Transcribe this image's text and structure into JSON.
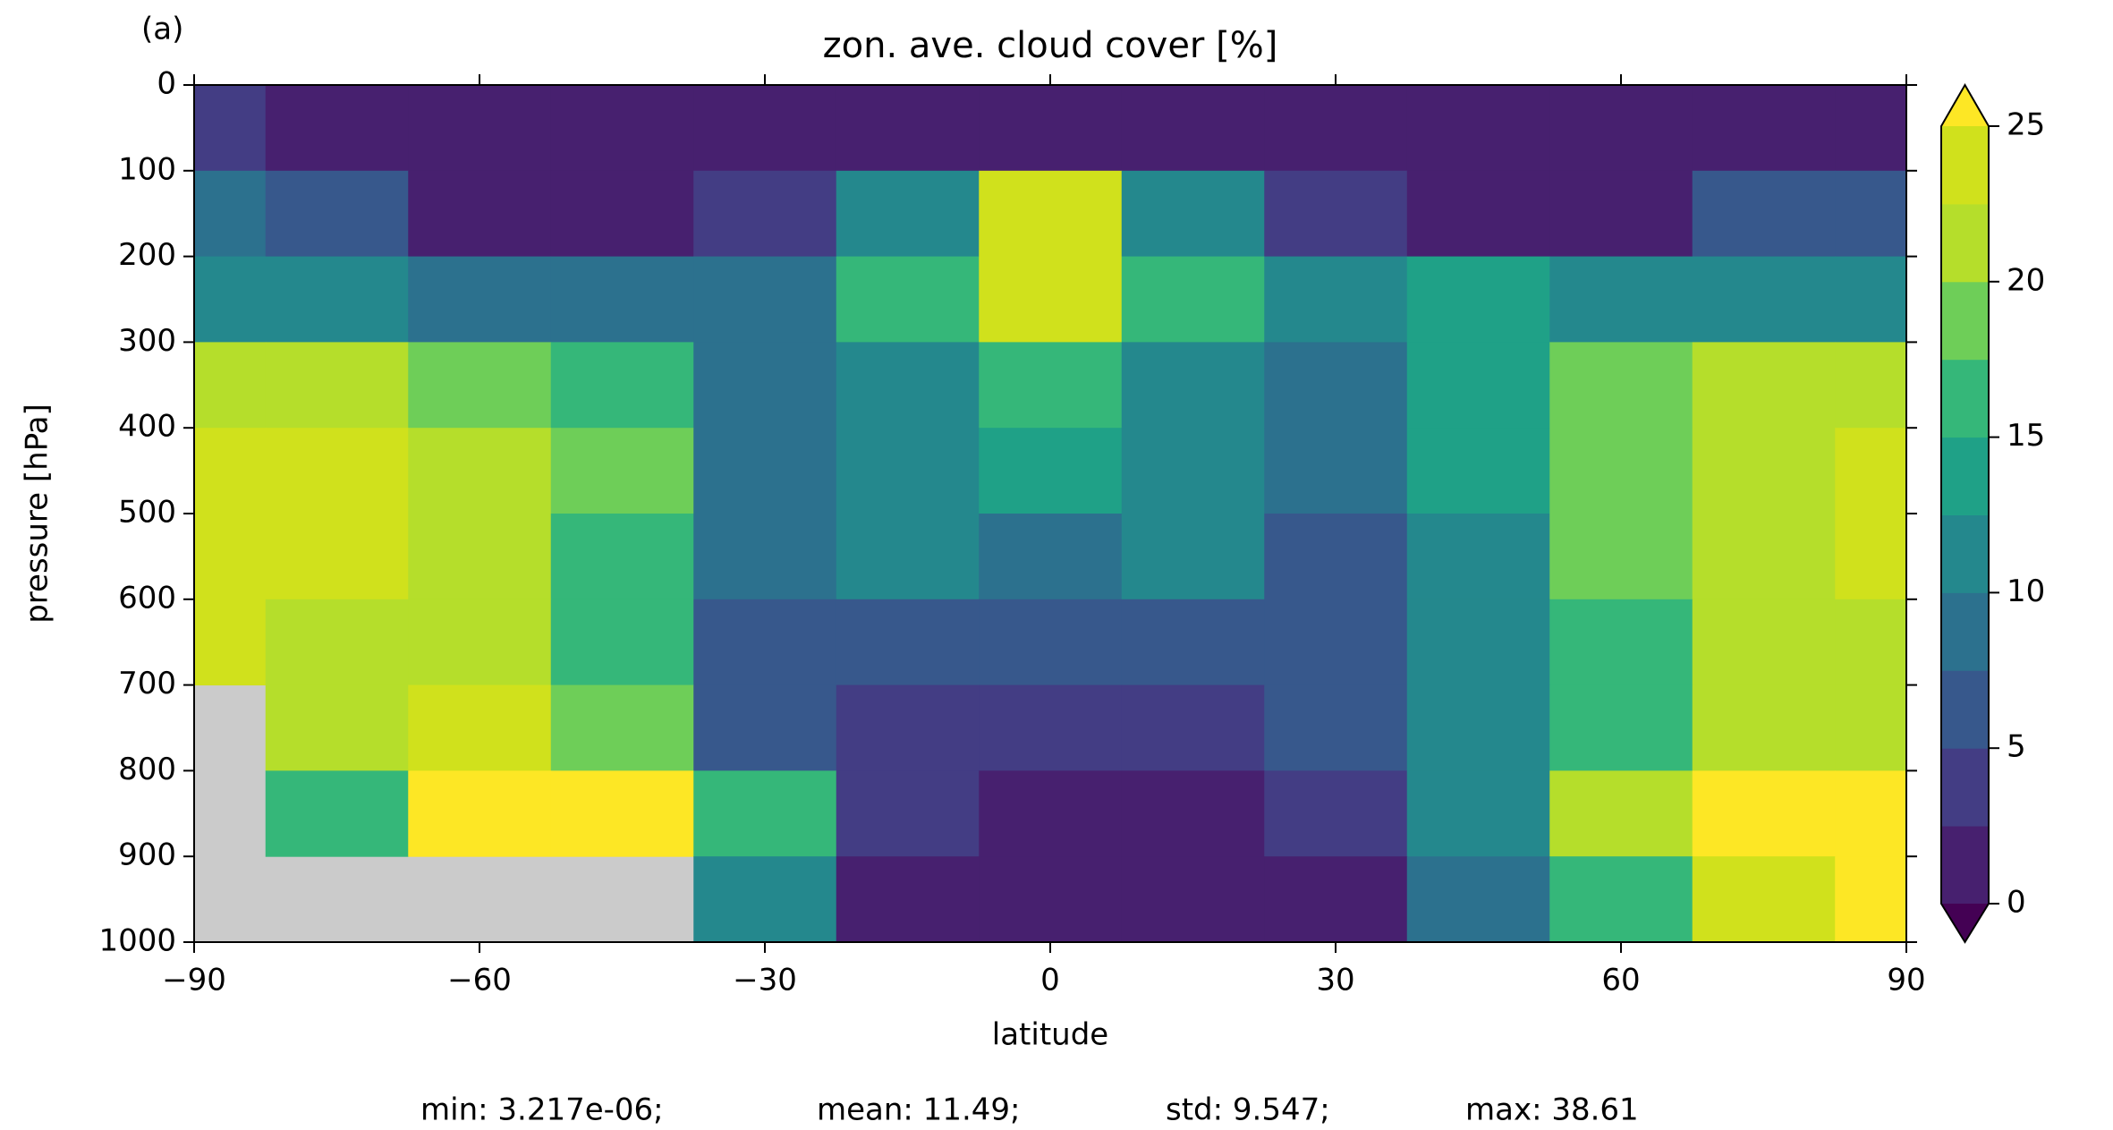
{
  "chart_data": {
    "type": "contourf",
    "panel_label": "(a)",
    "title": "zon. ave. cloud cover [%]",
    "x_label": "latitude",
    "y_label": "pressure [hPa]",
    "x": [
      -90,
      -75,
      -60,
      -45,
      -30,
      -15,
      0,
      15,
      30,
      45,
      60,
      75,
      90
    ],
    "y": [
      50,
      150,
      250,
      350,
      450,
      550,
      650,
      750,
      850,
      950
    ],
    "z": [
      [
        3,
        1,
        1,
        1,
        1,
        1,
        1,
        1,
        1,
        1,
        1,
        1,
        1
      ],
      [
        8,
        5,
        1,
        1,
        4,
        12,
        24,
        12,
        4,
        1,
        1,
        6,
        6
      ],
      [
        11,
        10,
        8,
        8,
        8,
        15,
        23,
        15,
        10,
        14,
        10,
        10,
        10
      ],
      [
        21,
        21,
        18,
        16,
        8,
        12,
        16,
        12,
        8,
        14,
        18,
        20,
        21
      ],
      [
        24,
        23,
        21,
        18,
        8,
        11,
        13,
        11,
        8,
        13,
        19,
        22,
        24
      ],
      [
        24,
        23,
        20,
        17,
        8,
        10,
        9,
        10,
        7,
        12,
        18,
        22,
        23
      ],
      [
        24,
        21,
        21,
        15,
        6,
        6,
        6,
        6,
        6,
        10,
        17,
        21,
        22
      ],
      [
        null,
        22,
        23,
        18,
        5,
        4,
        3,
        4,
        5,
        10,
        17,
        20,
        21
      ],
      [
        null,
        15,
        25,
        26,
        17,
        3,
        1,
        2,
        4,
        12,
        20,
        26,
        26
      ],
      [
        null,
        null,
        null,
        null,
        10,
        1,
        1,
        1,
        2,
        8,
        16,
        24,
        26
      ]
    ],
    "xlim": [
      -90,
      90
    ],
    "ylim": [
      1000,
      0
    ],
    "xticks": [
      {
        "value": -90,
        "label": "−90"
      },
      {
        "value": -60,
        "label": "−60"
      },
      {
        "value": -30,
        "label": "−30"
      },
      0,
      30,
      60,
      90
    ],
    "yticks": [
      0,
      100,
      200,
      300,
      400,
      500,
      600,
      700,
      800,
      900,
      1000
    ],
    "levels": [
      0,
      2.5,
      5,
      7.5,
      10,
      12.5,
      15,
      17.5,
      20,
      22.5,
      25
    ],
    "colors": [
      "#47206f",
      "#433d84",
      "#37588c",
      "#2c718e",
      "#24888d",
      "#1fa187",
      "#35b779",
      "#6ece58",
      "#b5de2b",
      "#d0e11c"
    ],
    "under_color": "#440154",
    "over_color": "#fde725",
    "missing_color": "#cbcbcb",
    "colorbar_ticks": [
      0,
      5,
      10,
      15,
      20,
      25
    ],
    "stats": [
      "min: 3.217e-06;",
      "mean: 11.49;",
      "std: 9.547;",
      "max: 38.61"
    ]
  }
}
